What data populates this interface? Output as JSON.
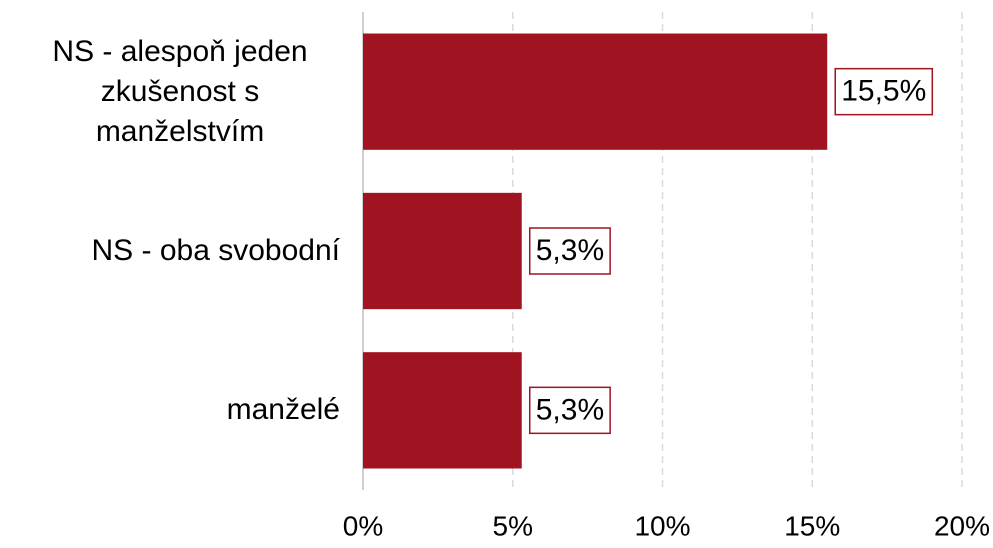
{
  "chart_data": {
    "type": "bar",
    "orientation": "horizontal",
    "categories": [
      "NS - alespoň jeden zkušenost s manželstvím",
      "NS - oba svobodní",
      "manželé"
    ],
    "values": [
      15.5,
      5.3,
      5.3
    ],
    "value_labels": [
      "15,5%",
      "5,3%",
      "5,3%"
    ],
    "color": "#a01320",
    "xlim": [
      0,
      20
    ],
    "xticks": [
      {
        "value": 0,
        "label": "0%"
      },
      {
        "value": 5,
        "label": "5%"
      },
      {
        "value": 10,
        "label": "10%"
      },
      {
        "value": 15,
        "label": "15%"
      },
      {
        "value": 20,
        "label": "20%"
      }
    ],
    "grid": true
  }
}
